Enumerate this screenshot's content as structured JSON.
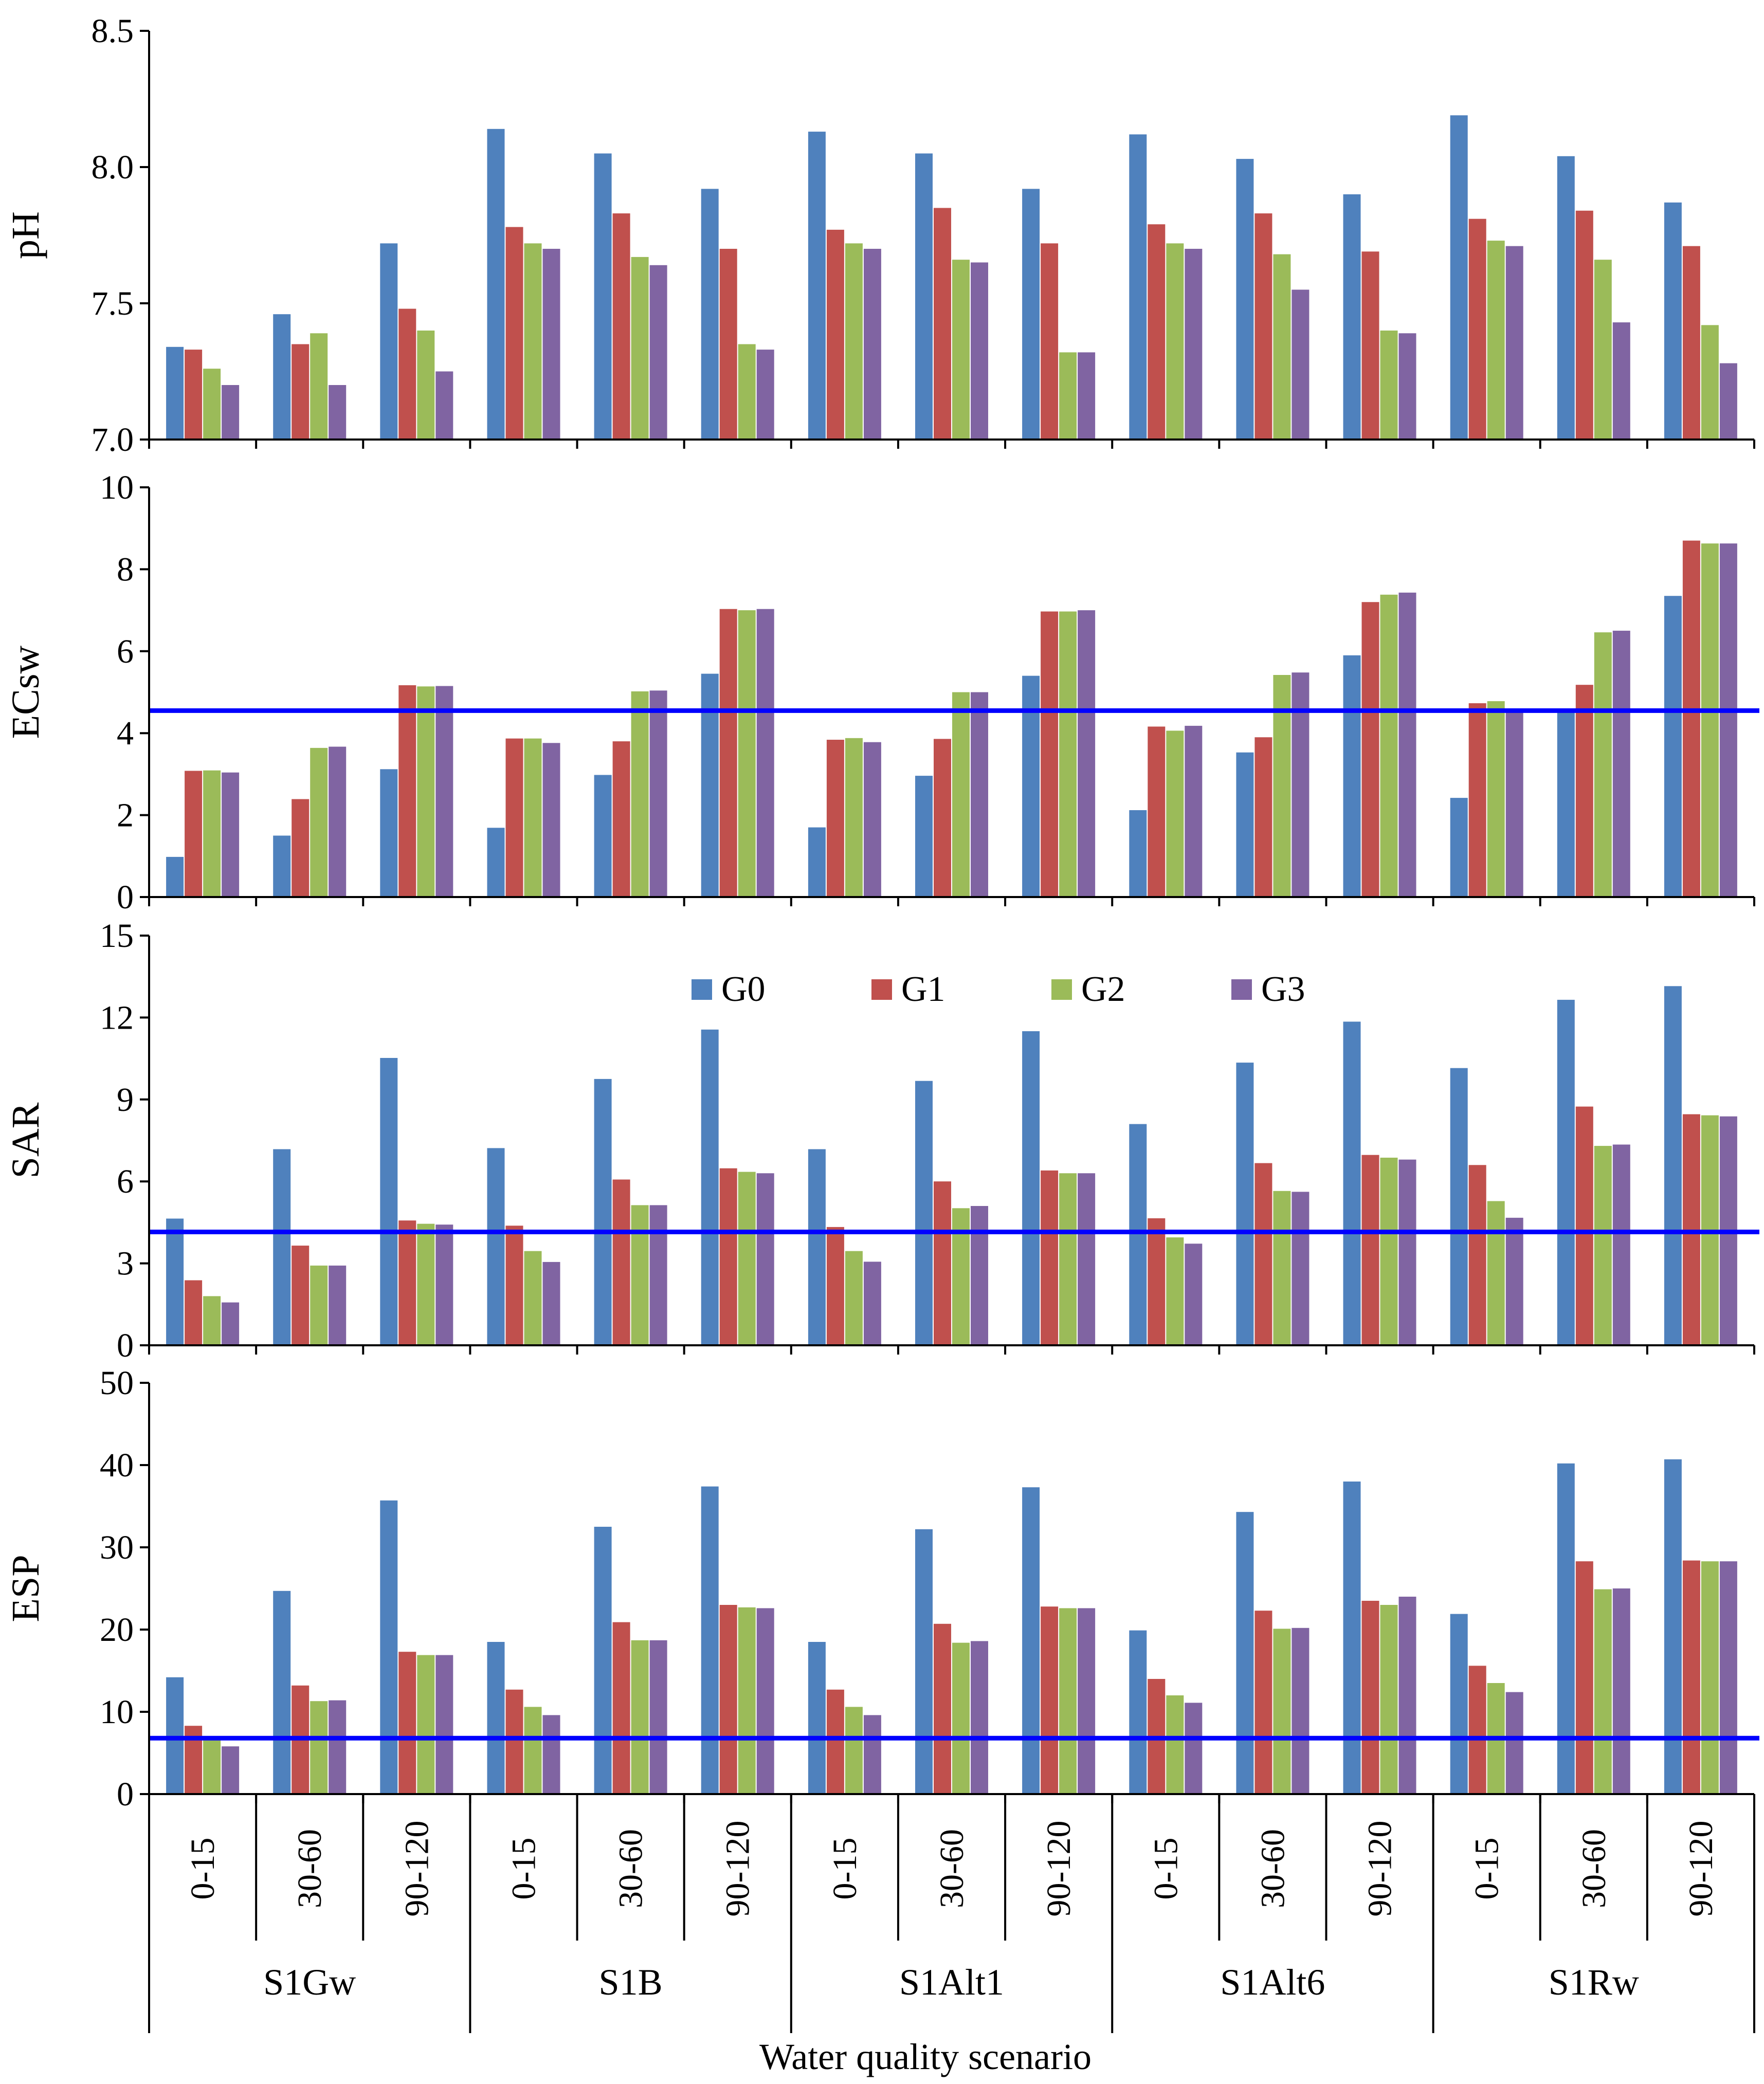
{
  "colors": {
    "G0": "#4F81BD",
    "G1": "#C0504D",
    "G2": "#9BBB59",
    "G3": "#8064A2",
    "threshold": "#0000FF",
    "axis": "#000000"
  },
  "figure": {
    "xlabel": "Water quality scenario",
    "depths": [
      "0-15",
      "30-60",
      "90-120"
    ],
    "scenarios": [
      "S1Gw",
      "S1B",
      "S1Alt1",
      "S1Alt6",
      "S1Rw"
    ]
  },
  "legend": {
    "items": [
      "G0",
      "G1",
      "G2",
      "G3"
    ]
  },
  "chart_data": [
    {
      "type": "bar",
      "title": "",
      "ylabel": "pH",
      "ylim": [
        7.0,
        8.5
      ],
      "yticks": [
        "7.0",
        "7.5",
        "8.0",
        "8.5"
      ],
      "ytick_values": [
        7.0,
        7.5,
        8.0,
        8.5
      ],
      "categories": [
        "S1Gw 0-15",
        "S1Gw 30-60",
        "S1Gw 90-120",
        "S1B 0-15",
        "S1B 30-60",
        "S1B 90-120",
        "S1Alt1 0-15",
        "S1Alt1 30-60",
        "S1Alt1 90-120",
        "S1Alt6 0-15",
        "S1Alt6 30-60",
        "S1Alt6 90-120",
        "S1Rw 0-15",
        "S1Rw 30-60",
        "S1Rw 90-120"
      ],
      "series": [
        {
          "name": "G0",
          "values": [
            7.34,
            7.46,
            7.72,
            8.14,
            8.05,
            7.92,
            8.13,
            8.05,
            7.92,
            8.12,
            8.03,
            7.9,
            8.19,
            8.04,
            7.87
          ]
        },
        {
          "name": "G1",
          "values": [
            7.33,
            7.35,
            7.48,
            7.78,
            7.83,
            7.7,
            7.77,
            7.85,
            7.72,
            7.79,
            7.83,
            7.69,
            7.81,
            7.84,
            7.71
          ]
        },
        {
          "name": "G2",
          "values": [
            7.26,
            7.39,
            7.4,
            7.72,
            7.67,
            7.35,
            7.72,
            7.66,
            7.32,
            7.72,
            7.68,
            7.4,
            7.73,
            7.66,
            7.42
          ]
        },
        {
          "name": "G3",
          "values": [
            7.2,
            7.2,
            7.25,
            7.7,
            7.64,
            7.33,
            7.7,
            7.65,
            7.32,
            7.7,
            7.55,
            7.39,
            7.71,
            7.43,
            7.28
          ]
        }
      ],
      "threshold": null
    },
    {
      "type": "bar",
      "title": "",
      "ylabel": "ECsw",
      "ylim": [
        0,
        10
      ],
      "yticks": [
        "0",
        "2",
        "4",
        "6",
        "8",
        "10"
      ],
      "ytick_values": [
        0,
        2,
        4,
        6,
        8,
        10
      ],
      "categories": [
        "S1Gw 0-15",
        "S1Gw 30-60",
        "S1Gw 90-120",
        "S1B 0-15",
        "S1B 30-60",
        "S1B 90-120",
        "S1Alt1 0-15",
        "S1Alt1 30-60",
        "S1Alt1 90-120",
        "S1Alt6 0-15",
        "S1Alt6 30-60",
        "S1Alt6 90-120",
        "S1Rw 0-15",
        "S1Rw 30-60",
        "S1Rw 90-120"
      ],
      "series": [
        {
          "name": "G0",
          "values": [
            0.98,
            1.5,
            3.12,
            1.69,
            2.98,
            5.45,
            1.7,
            2.96,
            5.4,
            2.12,
            3.53,
            5.9,
            2.42,
            4.5,
            7.35
          ]
        },
        {
          "name": "G1",
          "values": [
            3.08,
            2.39,
            5.17,
            3.87,
            3.8,
            7.03,
            3.84,
            3.86,
            6.97,
            4.16,
            3.9,
            7.2,
            4.73,
            5.18,
            8.7
          ]
        },
        {
          "name": "G2",
          "values": [
            3.09,
            3.64,
            5.14,
            3.87,
            5.02,
            7.0,
            3.88,
            5.0,
            6.97,
            4.06,
            5.42,
            7.38,
            4.78,
            6.46,
            8.63
          ]
        },
        {
          "name": "G3",
          "values": [
            3.04,
            3.67,
            5.15,
            3.76,
            5.04,
            7.03,
            3.78,
            5.0,
            7.0,
            4.18,
            5.48,
            7.43,
            4.53,
            6.5,
            8.63
          ]
        }
      ],
      "threshold": 4.55
    },
    {
      "type": "bar",
      "title": "",
      "ylabel": "SAR",
      "ylim": [
        0,
        15
      ],
      "yticks": [
        "0",
        "3",
        "6",
        "9",
        "12",
        "15"
      ],
      "ytick_values": [
        0,
        3,
        6,
        9,
        12,
        15
      ],
      "categories": [
        "S1Gw 0-15",
        "S1Gw 30-60",
        "S1Gw 90-120",
        "S1B 0-15",
        "S1B 30-60",
        "S1B 90-120",
        "S1Alt1 0-15",
        "S1Alt1 30-60",
        "S1Alt1 90-120",
        "S1Alt6 0-15",
        "S1Alt6 30-60",
        "S1Alt6 90-120",
        "S1Rw 0-15",
        "S1Rw 30-60",
        "S1Rw 90-120"
      ],
      "series": [
        {
          "name": "G0",
          "values": [
            4.64,
            7.18,
            10.52,
            7.22,
            9.75,
            11.56,
            7.18,
            9.68,
            11.5,
            8.1,
            10.35,
            11.85,
            10.15,
            12.65,
            13.15
          ]
        },
        {
          "name": "G1",
          "values": [
            2.38,
            3.65,
            4.57,
            4.38,
            6.07,
            6.48,
            4.33,
            6.0,
            6.4,
            4.65,
            6.67,
            6.97,
            6.6,
            8.74,
            8.46
          ]
        },
        {
          "name": "G2",
          "values": [
            1.8,
            2.92,
            4.45,
            3.45,
            5.13,
            6.35,
            3.45,
            5.02,
            6.3,
            3.95,
            5.65,
            6.87,
            5.28,
            7.3,
            8.42
          ]
        },
        {
          "name": "G3",
          "values": [
            1.57,
            2.92,
            4.42,
            3.05,
            5.13,
            6.3,
            3.06,
            5.1,
            6.3,
            3.72,
            5.62,
            6.8,
            4.67,
            7.35,
            8.38
          ]
        }
      ],
      "threshold": 4.15
    },
    {
      "type": "bar",
      "title": "",
      "ylabel": "ESP",
      "ylim": [
        0,
        50
      ],
      "yticks": [
        "0",
        "10",
        "20",
        "30",
        "40",
        "50"
      ],
      "ytick_values": [
        0,
        10,
        20,
        30,
        40,
        50
      ],
      "categories": [
        "S1Gw 0-15",
        "S1Gw 30-60",
        "S1Gw 90-120",
        "S1B 0-15",
        "S1B 30-60",
        "S1B 90-120",
        "S1Alt1 0-15",
        "S1Alt1 30-60",
        "S1Alt1 90-120",
        "S1Alt6 0-15",
        "S1Alt6 30-60",
        "S1Alt6 90-120",
        "S1Rw 0-15",
        "S1Rw 30-60",
        "S1Rw 90-120"
      ],
      "series": [
        {
          "name": "G0",
          "values": [
            14.2,
            24.7,
            35.7,
            18.5,
            32.5,
            37.4,
            18.5,
            32.2,
            37.3,
            19.9,
            34.3,
            38.0,
            21.9,
            40.2,
            40.7
          ]
        },
        {
          "name": "G1",
          "values": [
            8.3,
            13.2,
            17.3,
            12.7,
            20.9,
            23.0,
            12.7,
            20.7,
            22.8,
            14.0,
            22.3,
            23.5,
            15.6,
            28.3,
            28.4
          ]
        },
        {
          "name": "G2",
          "values": [
            6.7,
            11.3,
            16.9,
            10.6,
            18.7,
            22.7,
            10.6,
            18.4,
            22.6,
            12.0,
            20.1,
            23.0,
            13.5,
            24.9,
            28.3
          ]
        },
        {
          "name": "G3",
          "values": [
            5.8,
            11.4,
            16.9,
            9.6,
            18.7,
            22.6,
            9.6,
            18.6,
            22.6,
            11.1,
            20.2,
            24.0,
            12.4,
            25.0,
            28.3
          ]
        }
      ],
      "threshold": 6.8
    }
  ]
}
